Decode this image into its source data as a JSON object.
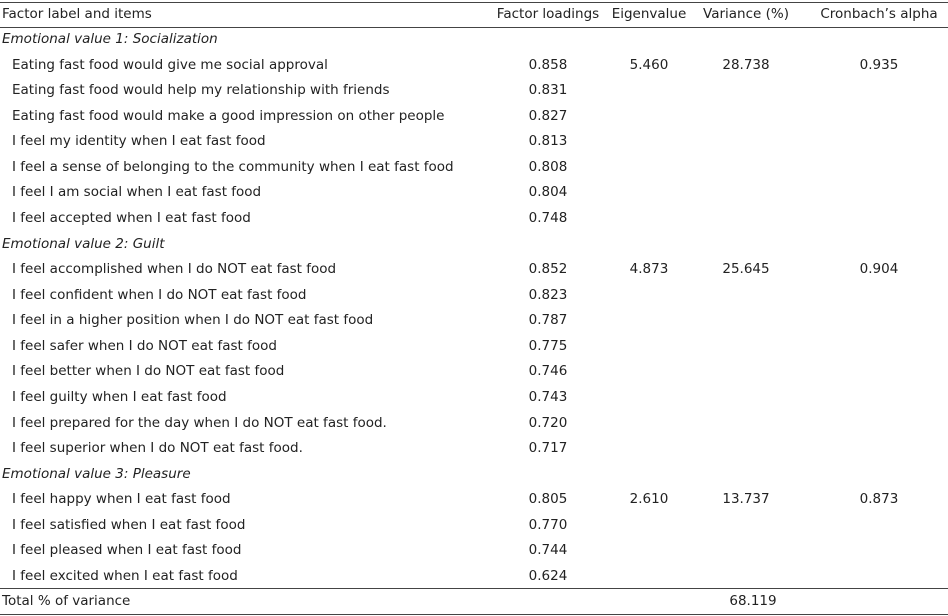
{
  "table": {
    "header": [
      "Factor label and items",
      "Factor loadings",
      "Eigenvalue",
      "Variance (%)",
      "Cronbach’s alpha"
    ],
    "groups": [
      {
        "label": "Emotional value 1: Socialization",
        "eigenvalue": "5.460",
        "variance": "28.738",
        "alpha": "0.935",
        "items": [
          {
            "item": "Eating fast food would give me social approval",
            "loading": "0.858"
          },
          {
            "item": "Eating fast food would help my relationship with friends",
            "loading": "0.831"
          },
          {
            "item": "Eating fast food would make a good impression on other people",
            "loading": "0.827"
          },
          {
            "item": "I feel my identity when I eat fast food",
            "loading": "0.813"
          },
          {
            "item": "I feel a sense of belonging to the community when I eat fast food",
            "loading": "0.808"
          },
          {
            "item": "I feel I am social when I eat fast food",
            "loading": "0.804"
          },
          {
            "item": "I feel accepted when I eat fast food",
            "loading": "0.748"
          }
        ]
      },
      {
        "label": "Emotional value 2: Guilt",
        "eigenvalue": "4.873",
        "variance": "25.645",
        "alpha": "0.904",
        "items": [
          {
            "item": "I feel accomplished when I do NOT eat fast food",
            "loading": "0.852"
          },
          {
            "item": "I feel confident when I do NOT eat fast food",
            "loading": "0.823"
          },
          {
            "item": "I feel in a higher position when I do NOT eat fast food",
            "loading": "0.787"
          },
          {
            "item": "I feel safer when I do NOT eat fast food",
            "loading": "0.775"
          },
          {
            "item": "I feel better when I do NOT eat fast food",
            "loading": "0.746"
          },
          {
            "item": "I feel guilty when I eat fast food",
            "loading": "0.743"
          },
          {
            "item": "I feel prepared for the day when I do NOT eat fast food.",
            "loading": "0.720"
          },
          {
            "item": "I feel superior when I do NOT eat fast food.",
            "loading": "0.717"
          }
        ]
      },
      {
        "label": "Emotional value 3: Pleasure",
        "eigenvalue": "2.610",
        "variance": "13.737",
        "alpha": "0.873",
        "items": [
          {
            "item": "I feel happy when I eat fast food",
            "loading": "0.805"
          },
          {
            "item": "I feel satisfied when I eat fast food",
            "loading": "0.770"
          },
          {
            "item": "I feel pleased when I eat fast food",
            "loading": "0.744"
          },
          {
            "item": "I feel excited when I eat fast food",
            "loading": "0.624"
          }
        ]
      }
    ],
    "total": {
      "label": "Total % of variance",
      "variance": "68.119"
    }
  }
}
